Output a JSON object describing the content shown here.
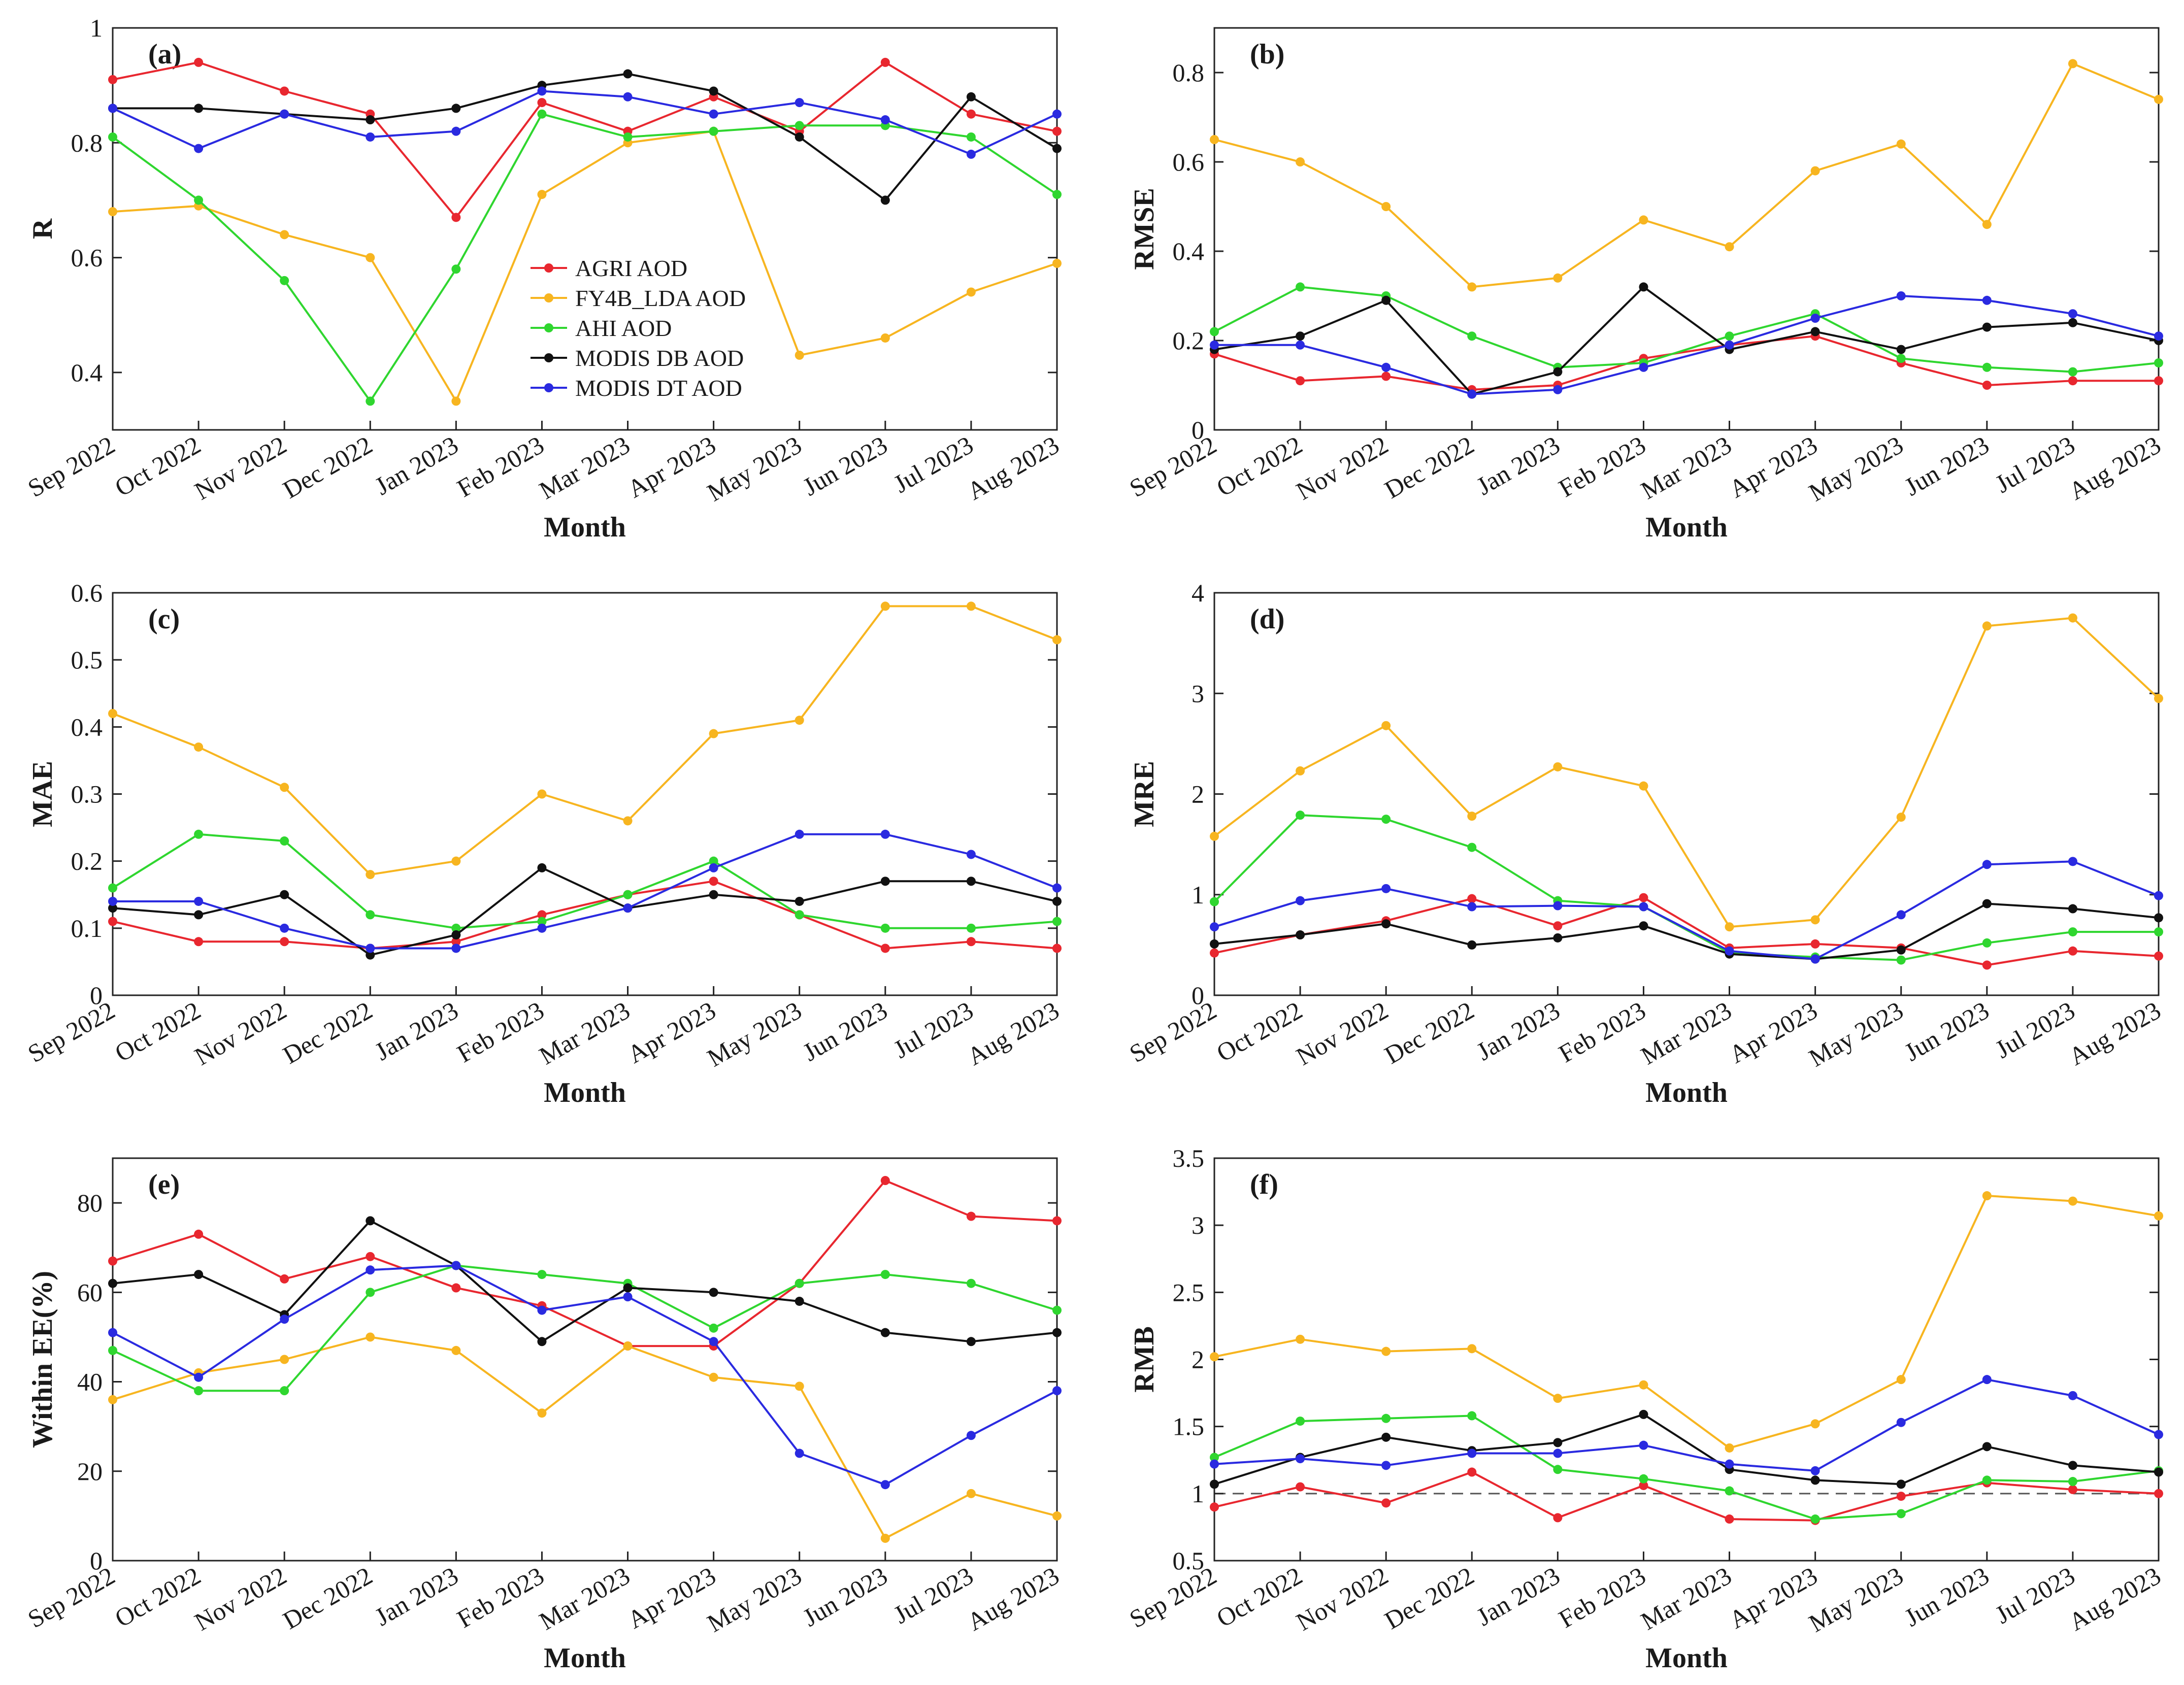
{
  "figure": {
    "months": [
      "Sep 2022",
      "Oct 2022",
      "Nov 2022",
      "Dec 2022",
      "Jan 2023",
      "Feb 2023",
      "Mar 2023",
      "Apr 2023",
      "May 2023",
      "Jun 2023",
      "Jul 2023",
      "Aug 2023"
    ],
    "xlabel": "Month",
    "colors": {
      "AGRI AOD": "#e8272f",
      "FY4B_LDA AOD": "#f7b520",
      "AHI AOD": "#2fd62f",
      "MODIS DB AOD": "#111111",
      "MODIS DT AOD": "#2a2ae0"
    },
    "legend": [
      "AGRI AOD",
      "FY4B_LDA AOD",
      "AHI AOD",
      "MODIS DB AOD",
      "MODIS DT AOD"
    ]
  },
  "chart_data": [
    {
      "type": "line",
      "panel": "(a)",
      "ylabel": "R",
      "xlabel": "Month",
      "ylim": [
        0.3,
        1.0
      ],
      "yticks": [
        0.4,
        0.6,
        0.8,
        1
      ],
      "ytick_labels": [
        "0.4",
        "0.6",
        "0.8",
        "1"
      ],
      "legend_position": "center-left",
      "series": [
        {
          "name": "AGRI AOD",
          "values": [
            0.91,
            0.94,
            0.89,
            0.85,
            0.67,
            0.87,
            0.82,
            0.88,
            0.82,
            0.94,
            0.85,
            0.82
          ]
        },
        {
          "name": "FY4B_LDA AOD",
          "values": [
            0.68,
            0.69,
            0.64,
            0.6,
            0.35,
            0.71,
            0.8,
            0.82,
            0.43,
            0.46,
            0.54,
            0.59
          ]
        },
        {
          "name": "AHI AOD",
          "values": [
            0.81,
            0.7,
            0.56,
            0.35,
            0.58,
            0.85,
            0.81,
            0.82,
            0.83,
            0.83,
            0.81,
            0.71
          ]
        },
        {
          "name": "MODIS DB AOD",
          "values": [
            0.86,
            0.86,
            0.85,
            0.84,
            0.86,
            0.9,
            0.92,
            0.89,
            0.81,
            0.7,
            0.88,
            0.79
          ]
        },
        {
          "name": "MODIS DT AOD",
          "values": [
            0.86,
            0.79,
            0.85,
            0.81,
            0.82,
            0.89,
            0.88,
            0.85,
            0.87,
            0.84,
            0.78,
            0.85
          ]
        }
      ]
    },
    {
      "type": "line",
      "panel": "(b)",
      "ylabel": "RMSE",
      "xlabel": "Month",
      "ylim": [
        0,
        0.9
      ],
      "yticks": [
        0,
        0.2,
        0.4,
        0.6,
        0.8
      ],
      "ytick_labels": [
        "0",
        "0.2",
        "0.4",
        "0.6",
        "0.8"
      ],
      "series": [
        {
          "name": "AGRI AOD",
          "values": [
            0.17,
            0.11,
            0.12,
            0.09,
            0.1,
            0.16,
            0.19,
            0.21,
            0.15,
            0.1,
            0.11,
            0.11
          ]
        },
        {
          "name": "FY4B_LDA AOD",
          "values": [
            0.65,
            0.6,
            0.5,
            0.32,
            0.34,
            0.47,
            0.41,
            0.58,
            0.64,
            0.46,
            0.82,
            0.74
          ]
        },
        {
          "name": "AHI AOD",
          "values": [
            0.22,
            0.32,
            0.3,
            0.21,
            0.14,
            0.15,
            0.21,
            0.26,
            0.16,
            0.14,
            0.13,
            0.15
          ]
        },
        {
          "name": "MODIS DB AOD",
          "values": [
            0.18,
            0.21,
            0.29,
            0.08,
            0.13,
            0.32,
            0.18,
            0.22,
            0.18,
            0.23,
            0.24,
            0.2
          ]
        },
        {
          "name": "MODIS DT AOD",
          "values": [
            0.19,
            0.19,
            0.14,
            0.08,
            0.09,
            0.14,
            0.19,
            0.25,
            0.3,
            0.29,
            0.26,
            0.21
          ]
        }
      ]
    },
    {
      "type": "line",
      "panel": "(c)",
      "ylabel": "MAE",
      "xlabel": "Month",
      "ylim": [
        0,
        0.6
      ],
      "yticks": [
        0,
        0.1,
        0.2,
        0.3,
        0.4,
        0.5,
        0.6
      ],
      "ytick_labels": [
        "0",
        "0.1",
        "0.2",
        "0.3",
        "0.4",
        "0.5",
        "0.6"
      ],
      "series": [
        {
          "name": "AGRI AOD",
          "values": [
            0.11,
            0.08,
            0.08,
            0.07,
            0.08,
            0.12,
            0.15,
            0.17,
            0.12,
            0.07,
            0.08,
            0.07
          ]
        },
        {
          "name": "FY4B_LDA AOD",
          "values": [
            0.42,
            0.37,
            0.31,
            0.18,
            0.2,
            0.3,
            0.26,
            0.39,
            0.41,
            0.58,
            0.58,
            0.53
          ]
        },
        {
          "name": "AHI AOD",
          "values": [
            0.16,
            0.24,
            0.23,
            0.12,
            0.1,
            0.11,
            0.15,
            0.2,
            0.12,
            0.1,
            0.1,
            0.11
          ]
        },
        {
          "name": "MODIS DB AOD",
          "values": [
            0.13,
            0.12,
            0.15,
            0.06,
            0.09,
            0.19,
            0.13,
            0.15,
            0.14,
            0.17,
            0.17,
            0.14
          ]
        },
        {
          "name": "MODIS DT AOD",
          "values": [
            0.14,
            0.14,
            0.1,
            0.07,
            0.07,
            0.1,
            0.13,
            0.19,
            0.24,
            0.24,
            0.21,
            0.16
          ]
        }
      ]
    },
    {
      "type": "line",
      "panel": "(d)",
      "ylabel": "MRE",
      "xlabel": "Month",
      "ylim": [
        0,
        4
      ],
      "yticks": [
        0,
        1,
        2,
        3,
        4
      ],
      "ytick_labels": [
        "0",
        "1",
        "2",
        "3",
        "4"
      ],
      "series": [
        {
          "name": "AGRI AOD",
          "values": [
            0.42,
            0.6,
            0.74,
            0.96,
            0.69,
            0.97,
            0.47,
            0.51,
            0.47,
            0.3,
            0.44,
            0.39
          ]
        },
        {
          "name": "FY4B_LDA AOD",
          "values": [
            1.58,
            2.23,
            2.68,
            1.78,
            2.27,
            2.08,
            0.68,
            0.75,
            1.77,
            3.67,
            3.75,
            2.95
          ]
        },
        {
          "name": "AHI AOD",
          "values": [
            0.93,
            1.79,
            1.75,
            1.47,
            0.94,
            0.88,
            0.42,
            0.38,
            0.35,
            0.52,
            0.63,
            0.63
          ]
        },
        {
          "name": "MODIS DB AOD",
          "values": [
            0.51,
            0.6,
            0.71,
            0.5,
            0.57,
            0.69,
            0.41,
            0.36,
            0.45,
            0.91,
            0.86,
            0.77
          ]
        },
        {
          "name": "MODIS DT AOD",
          "values": [
            0.68,
            0.94,
            1.06,
            0.88,
            0.89,
            0.88,
            0.44,
            0.36,
            0.8,
            1.3,
            1.33,
            0.99
          ]
        }
      ]
    },
    {
      "type": "line",
      "panel": "(e)",
      "ylabel": "Within EE(%)",
      "xlabel": "Month",
      "ylim": [
        0,
        90
      ],
      "yticks": [
        0,
        20,
        40,
        60,
        80
      ],
      "ytick_labels": [
        "0",
        "20",
        "40",
        "60",
        "80"
      ],
      "series": [
        {
          "name": "AGRI AOD",
          "values": [
            67,
            73,
            63,
            68,
            61,
            57,
            48,
            48,
            62,
            85,
            77,
            76
          ]
        },
        {
          "name": "FY4B_LDA AOD",
          "values": [
            36,
            42,
            45,
            50,
            47,
            33,
            48,
            41,
            39,
            5,
            15,
            10
          ]
        },
        {
          "name": "AHI AOD",
          "values": [
            47,
            38,
            38,
            60,
            66,
            64,
            62,
            52,
            62,
            64,
            62,
            56
          ]
        },
        {
          "name": "MODIS DB AOD",
          "values": [
            62,
            64,
            55,
            76,
            66,
            49,
            61,
            60,
            58,
            51,
            49,
            51
          ]
        },
        {
          "name": "MODIS DT AOD",
          "values": [
            51,
            41,
            54,
            65,
            66,
            56,
            59,
            49,
            24,
            17,
            28,
            38
          ]
        }
      ]
    },
    {
      "type": "line",
      "panel": "(f)",
      "ylabel": "RMB",
      "xlabel": "Month",
      "ylim": [
        0.5,
        3.5
      ],
      "yticks": [
        0.5,
        1,
        1.5,
        2,
        2.5,
        3,
        3.5
      ],
      "ytick_labels": [
        "0.5",
        "1",
        "1.5",
        "2",
        "2.5",
        "3",
        "3.5"
      ],
      "reference_line": 1,
      "series": [
        {
          "name": "AGRI AOD",
          "values": [
            0.9,
            1.05,
            0.93,
            1.16,
            0.82,
            1.06,
            0.81,
            0.8,
            0.98,
            1.08,
            1.03,
            1.0
          ]
        },
        {
          "name": "FY4B_LDA AOD",
          "values": [
            2.02,
            2.15,
            2.06,
            2.08,
            1.71,
            1.81,
            1.34,
            1.52,
            1.85,
            3.22,
            3.18,
            3.07
          ]
        },
        {
          "name": "AHI AOD",
          "values": [
            1.27,
            1.54,
            1.56,
            1.58,
            1.18,
            1.11,
            1.02,
            0.81,
            0.85,
            1.1,
            1.09,
            1.17
          ]
        },
        {
          "name": "MODIS DB AOD",
          "values": [
            1.07,
            1.27,
            1.42,
            1.32,
            1.38,
            1.59,
            1.18,
            1.1,
            1.07,
            1.35,
            1.21,
            1.16
          ]
        },
        {
          "name": "MODIS DT AOD",
          "values": [
            1.22,
            1.26,
            1.21,
            1.3,
            1.3,
            1.36,
            1.22,
            1.17,
            1.53,
            1.85,
            1.73,
            1.44
          ]
        }
      ]
    }
  ]
}
